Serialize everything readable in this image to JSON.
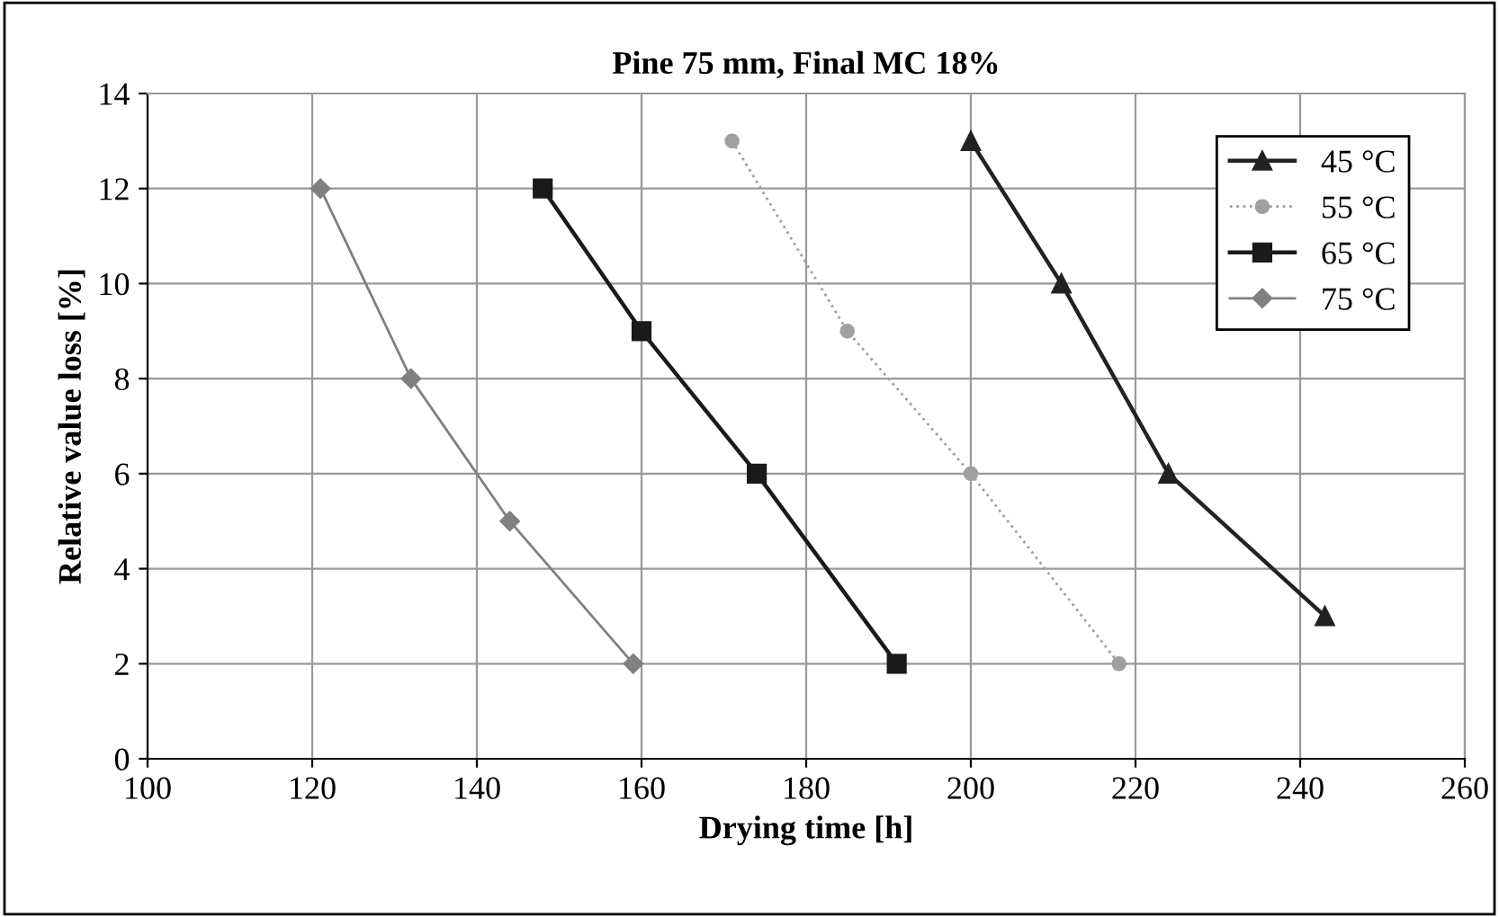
{
  "chart_data": {
    "type": "line",
    "title": "Pine 75 mm, Final MC 18%",
    "xlabel": "Drying time [h]",
    "ylabel": "Relative value loss [%]",
    "xlim": [
      100,
      260
    ],
    "xticks": [
      100,
      120,
      140,
      160,
      180,
      200,
      220,
      240,
      260
    ],
    "ylim": [
      0,
      14
    ],
    "yticks": [
      0,
      2,
      4,
      6,
      8,
      10,
      12,
      14
    ],
    "grid": true,
    "legend": "top right",
    "series": [
      {
        "name": "45 °C",
        "color": "#222222",
        "x": [
          200,
          211,
          224,
          243
        ],
        "values": [
          13,
          10,
          6,
          3
        ],
        "marker": "triangle",
        "line_style": "solid"
      },
      {
        "name": "55 °C",
        "color": "#a0a0a0",
        "x": [
          171,
          185,
          200,
          218
        ],
        "values": [
          13,
          9,
          6,
          2
        ],
        "marker": "circle",
        "line_style": "dotted"
      },
      {
        "name": "65 °C",
        "color": "#1a1a1a",
        "x": [
          148,
          160,
          174,
          191
        ],
        "values": [
          12,
          9,
          6,
          2
        ],
        "marker": "square",
        "line_style": "solid"
      },
      {
        "name": "75 °C",
        "color": "#808080",
        "x": [
          121,
          132,
          144,
          159
        ],
        "values": [
          12,
          8,
          5,
          2
        ],
        "marker": "diamond",
        "line_style": "solid"
      }
    ]
  }
}
